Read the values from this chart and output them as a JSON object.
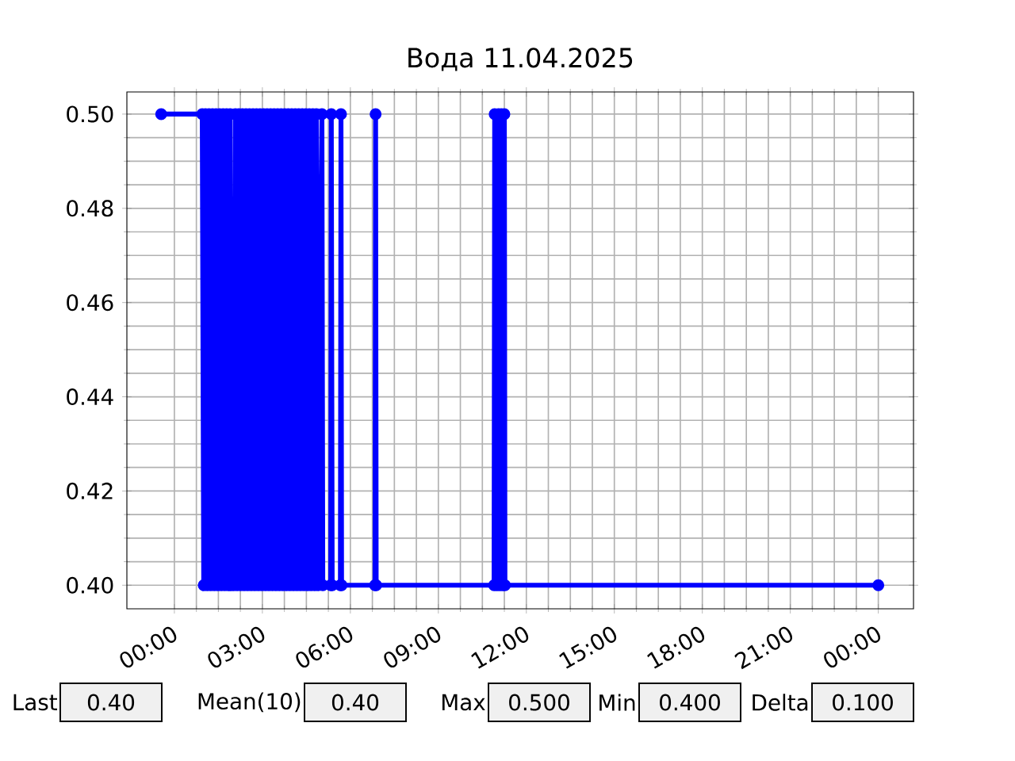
{
  "chart_data": {
    "type": "line",
    "title": "Вода 11.04.2025",
    "x": [
      -0.45,
      0.95,
      1.0,
      1.06,
      1.12,
      1.18,
      1.24,
      1.3,
      1.36,
      1.42,
      1.48,
      1.54,
      1.6,
      1.66,
      1.72,
      1.78,
      1.84,
      1.9,
      1.92,
      2.02,
      2.08,
      2.14,
      2.2,
      2.26,
      2.32,
      2.38,
      2.44,
      2.5,
      2.56,
      2.62,
      2.68,
      2.74,
      2.8,
      2.86,
      2.92,
      2.98,
      3.04,
      3.1,
      3.16,
      3.22,
      3.28,
      3.34,
      3.4,
      3.46,
      3.52,
      3.58,
      3.64,
      3.7,
      3.76,
      3.82,
      3.88,
      3.94,
      4.0,
      4.06,
      4.12,
      4.18,
      4.24,
      4.3,
      4.36,
      4.42,
      4.48,
      4.54,
      4.6,
      4.66,
      4.72,
      4.78,
      4.84,
      4.9,
      5.03,
      5.06,
      5.33,
      5.35,
      5.38,
      5.66,
      5.68,
      5.7,
      6.84,
      6.86,
      6.88,
      10.9,
      10.92,
      11.0,
      11.05,
      11.1,
      11.15,
      11.2,
      11.25,
      11.27,
      24.0
    ],
    "series": [
      {
        "color": "#0000ff",
        "values": [
          0.5,
          0.5,
          0.4,
          0.5,
          0.4,
          0.5,
          0.4,
          0.5,
          0.4,
          0.5,
          0.4,
          0.5,
          0.4,
          0.5,
          0.4,
          0.5,
          0.4,
          0.5,
          0.4,
          0.4,
          0.5,
          0.4,
          0.5,
          0.4,
          0.5,
          0.4,
          0.5,
          0.4,
          0.5,
          0.4,
          0.5,
          0.4,
          0.5,
          0.4,
          0.5,
          0.4,
          0.5,
          0.4,
          0.5,
          0.4,
          0.5,
          0.4,
          0.5,
          0.4,
          0.5,
          0.4,
          0.5,
          0.4,
          0.5,
          0.4,
          0.5,
          0.4,
          0.5,
          0.4,
          0.5,
          0.4,
          0.5,
          0.4,
          0.5,
          0.4,
          0.5,
          0.4,
          0.5,
          0.4,
          0.5,
          0.4,
          0.5,
          0.4,
          0.5,
          0.4,
          0.4,
          0.5,
          0.4,
          0.4,
          0.5,
          0.4,
          0.4,
          0.5,
          0.4,
          0.4,
          0.5,
          0.4,
          0.5,
          0.4,
          0.5,
          0.4,
          0.5,
          0.4,
          0.4
        ]
      }
    ],
    "xlim": [
      -1.62,
      25.2
    ],
    "xticks": [
      {
        "value": 0,
        "label": "00:00"
      },
      {
        "value": 3,
        "label": "03:00"
      },
      {
        "value": 6,
        "label": "06:00"
      },
      {
        "value": 9,
        "label": "09:00"
      },
      {
        "value": 12,
        "label": "12:00"
      },
      {
        "value": 15,
        "label": "15:00"
      },
      {
        "value": 18,
        "label": "18:00"
      },
      {
        "value": 21,
        "label": "21:00"
      },
      {
        "value": 24,
        "label": "00:00"
      }
    ],
    "ylim": [
      0.395,
      0.5047
    ],
    "yticks": [
      {
        "value": 0.4,
        "label": "0.40"
      },
      {
        "value": 0.42,
        "label": "0.42"
      },
      {
        "value": 0.44,
        "label": "0.44"
      },
      {
        "value": 0.46,
        "label": "0.46"
      },
      {
        "value": 0.48,
        "label": "0.48"
      },
      {
        "value": 0.5,
        "label": "0.50"
      }
    ],
    "grid": true,
    "marker": "circle",
    "line_style": "solid",
    "annotations": [
      "Last",
      "0.40",
      "Mean(10)",
      "0.40",
      "Max",
      "0.500",
      "Min",
      "0.400",
      "Delta",
      "0.100"
    ]
  }
}
